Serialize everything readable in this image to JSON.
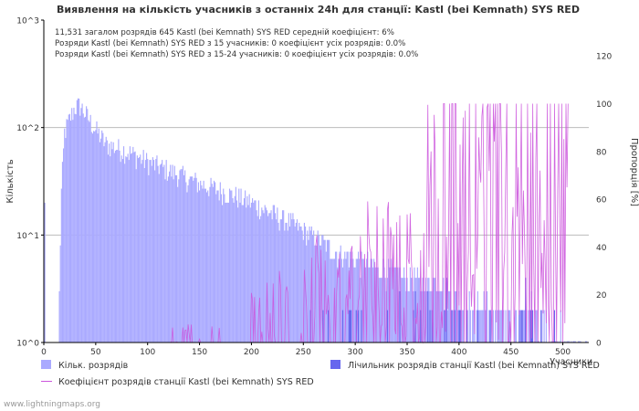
{
  "chart_data": {
    "type": "bar",
    "title": "Виявлення на кількість учасників з останніх 24h для станції: Kastl (bei Kemnath) SYS RED",
    "xlabel": "Учасники",
    "ylabel": "Кількість",
    "y2label": "Пропорція [%]",
    "xlim": [
      0,
      525
    ],
    "ylim_log": [
      1,
      1000
    ],
    "y2lim": [
      0,
      135
    ],
    "x_ticks": [
      "0",
      "50",
      "100",
      "150",
      "200",
      "250",
      "300",
      "350",
      "400",
      "450",
      "500"
    ],
    "y_ticks": [
      "10^0",
      "10^1",
      "10^2",
      "10^3"
    ],
    "y2_ticks": [
      "0",
      "20",
      "40",
      "60",
      "80",
      "100",
      "120"
    ],
    "info_lines": [
      "11,531 загалом розрядів      645 Kastl (bei Kemnath) SYS RED      середній коефіцієнт: 6%",
      "Розряди Kastl (bei Kemnath) SYS RED з 15 учасників: 0      коефіцієнт усіх розрядів: 0.0%",
      "Розряди Kastl (bei Kemnath) SYS RED з 15-24 учасників: 0      коефіцієнт усіх розрядів: 0.0%"
    ],
    "series": [
      {
        "name": "Кільк. розрядів",
        "color": "#aaaaff",
        "type": "bar"
      },
      {
        "name": "Лічильник розрядів станції Kastl (bei Kemnath) SYS RED",
        "color": "#6666ee",
        "type": "bar"
      },
      {
        "name": "Коефіцієнт розрядів станції Kastl (bei Kemnath) SYS RED",
        "color": "#cc55dd",
        "type": "line"
      }
    ],
    "total_anchors": {
      "x": [
        1,
        14,
        17,
        20,
        25,
        30,
        35,
        40,
        50,
        60,
        80,
        100,
        120,
        150,
        175,
        200,
        225,
        250,
        265,
        280,
        300,
        320,
        350,
        380,
        400,
        420,
        440,
        460,
        480,
        500,
        515,
        525
      ],
      "y": [
        20,
        1,
        25,
        90,
        120,
        155,
        160,
        135,
        95,
        70,
        60,
        48,
        40,
        30,
        25,
        20,
        15,
        11,
        9,
        7,
        6,
        5,
        4,
        3.3,
        2.6,
        2.2,
        1.9,
        1.6,
        1.4,
        1.2,
        1.05,
        1.0
      ]
    },
    "station_range": [
      140,
      520
    ],
    "ratio_range": [
      110,
      505
    ]
  },
  "legend": {
    "total": "Кільк. розрядів",
    "station": "Лічильник розрядів станції Kastl (bei Kemnath) SYS RED",
    "ratio": "Коефіцієнт розрядів станції Kastl (bei Kemnath) SYS RED"
  },
  "footer": "www.lightningmaps.org",
  "colors": {
    "total": "#aaaaff",
    "station": "#6666ee",
    "ratio": "#cc55dd",
    "grid": "#bbbbbb",
    "axis": "#000000"
  }
}
